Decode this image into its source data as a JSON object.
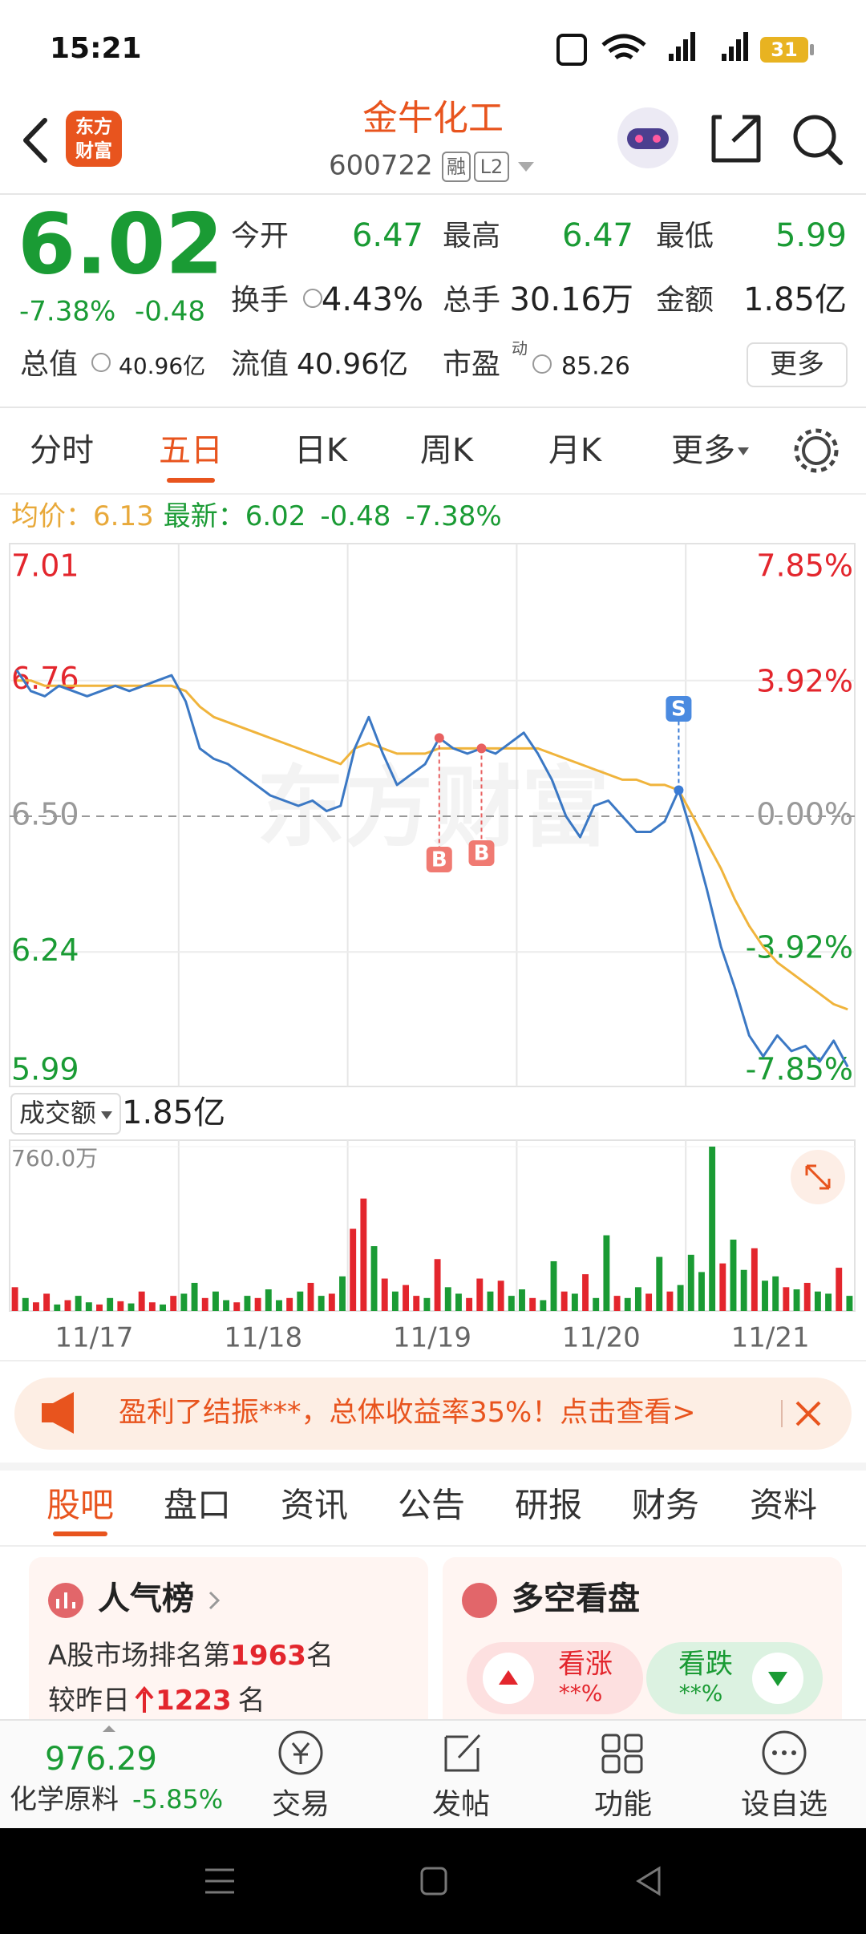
{
  "status_bar": {
    "time": "15:21",
    "battery": "31"
  },
  "header": {
    "logo": [
      "东方",
      "财富"
    ],
    "title": "金牛化工",
    "code": "600722",
    "badges": [
      "融",
      "L2"
    ]
  },
  "quote": {
    "price": "6.02",
    "change_pct": "-7.38%",
    "change": "-0.48",
    "price_color": "#1a9b34",
    "stats": [
      {
        "label": "今开",
        "value": "6.47",
        "color": "#1a9b34"
      },
      {
        "label": "最高",
        "value": "6.47",
        "color": "#1a9b34"
      },
      {
        "label": "最低",
        "value": "5.99",
        "color": "#1a9b34"
      },
      {
        "label": "换手",
        "value": "4.43%"
      },
      {
        "label": "总手",
        "value": "30.16万"
      },
      {
        "label": "金额",
        "value": "1.85亿"
      },
      {
        "label": "总值",
        "value": "40.96亿"
      },
      {
        "label": "流值",
        "value": "40.96亿"
      },
      {
        "label": "市盈",
        "sup": "动",
        "value": "85.26"
      }
    ],
    "more": "更多"
  },
  "chart_tabs": {
    "items": [
      "分时",
      "五日",
      "日K",
      "周K",
      "月K",
      "更多"
    ],
    "active": 1
  },
  "info_line": {
    "avg_label": "均价：",
    "avg": "6.13",
    "latest_label": "最新：",
    "latest": "6.02",
    "change": "-0.48",
    "change_pct": "-7.38%"
  },
  "chart": {
    "type": "line",
    "watermark": "东方财富",
    "ylim": [
      5.99,
      7.01
    ],
    "y2lim": [
      -7.85,
      7.85
    ],
    "yticks": [
      7.01,
      6.76,
      {
        "value": 6.5,
        "label": "6.50"
      },
      6.24,
      5.99
    ],
    "y2ticks": [
      {
        "value": 7.85,
        "label": "7.85%"
      },
      {
        "value": 3.92,
        "label": "3.92%"
      },
      {
        "value": 0,
        "label": "0.00%"
      },
      {
        "value": -3.92,
        "label": "-3.92%"
      },
      {
        "value": -7.85,
        "label": "-7.85%"
      }
    ],
    "price_color": "#3b78c4",
    "avg_color": "#f0b43c",
    "up_color": "#e3262d",
    "down_color": "#1a9b34",
    "price": [
      6.78,
      6.74,
      6.73,
      6.75,
      6.74,
      6.73,
      6.74,
      6.75,
      6.74,
      6.75,
      6.76,
      6.77,
      6.72,
      6.63,
      6.61,
      6.6,
      6.58,
      6.56,
      6.54,
      6.53,
      6.52,
      6.53,
      6.51,
      6.52,
      6.63,
      6.69,
      6.62,
      6.56,
      6.58,
      6.6,
      6.65,
      6.63,
      6.62,
      6.63,
      6.62,
      6.64,
      6.66,
      6.62,
      6.57,
      6.5,
      6.46,
      6.52,
      6.53,
      6.5,
      6.47,
      6.47,
      6.49,
      6.55,
      6.46,
      6.36,
      6.25,
      6.17,
      6.08,
      6.04,
      6.08,
      6.05,
      6.06,
      6.03,
      6.07,
      6.02
    ],
    "avg": [
      6.76,
      6.76,
      6.75,
      6.75,
      6.75,
      6.75,
      6.75,
      6.75,
      6.75,
      6.75,
      6.75,
      6.75,
      6.74,
      6.71,
      6.69,
      6.68,
      6.67,
      6.66,
      6.65,
      6.64,
      6.63,
      6.62,
      6.61,
      6.6,
      6.63,
      6.64,
      6.63,
      6.62,
      6.62,
      6.62,
      6.63,
      6.63,
      6.63,
      6.63,
      6.63,
      6.63,
      6.63,
      6.63,
      6.62,
      6.61,
      6.6,
      6.59,
      6.58,
      6.57,
      6.57,
      6.56,
      6.56,
      6.55,
      6.5,
      6.45,
      6.4,
      6.34,
      6.29,
      6.25,
      6.22,
      6.2,
      6.18,
      6.16,
      6.14,
      6.13
    ],
    "trade_marks": [
      "B",
      "B",
      "S"
    ],
    "dates": [
      "11/17",
      "11/18",
      "11/19",
      "11/20",
      "11/21"
    ]
  },
  "volume": {
    "selector": "成交额",
    "total": "1.85亿",
    "ylim": [
      0,
      760
    ],
    "yticks": [
      {
        "value": 760,
        "label": "760.0万"
      }
    ],
    "values": [
      110,
      60,
      40,
      80,
      30,
      50,
      70,
      40,
      30,
      60,
      45,
      35,
      90,
      40,
      30,
      70,
      80,
      130,
      60,
      90,
      50,
      40,
      70,
      60,
      100,
      50,
      60,
      90,
      130,
      70,
      80,
      160,
      380,
      520,
      300,
      150,
      90,
      120,
      70,
      60,
      240,
      110,
      80,
      60,
      150,
      90,
      140,
      70,
      100,
      60,
      50,
      230,
      90,
      80,
      170,
      60,
      350,
      70,
      60,
      110,
      80,
      250,
      90,
      120,
      260,
      180,
      760,
      220,
      330,
      190,
      290,
      140,
      160,
      110,
      100,
      130,
      90,
      80,
      200,
      70
    ],
    "direction": [
      "u",
      "d",
      "u",
      "u",
      "d",
      "u",
      "d",
      "d",
      "u",
      "d",
      "u",
      "d",
      "u",
      "u",
      "d",
      "u",
      "d",
      "d",
      "u",
      "d",
      "d",
      "u",
      "d",
      "u",
      "d",
      "d",
      "u",
      "d",
      "u",
      "d",
      "u",
      "d",
      "u",
      "u",
      "d",
      "u",
      "d",
      "u",
      "u",
      "d",
      "u",
      "d",
      "d",
      "u",
      "u",
      "d",
      "u",
      "d",
      "d",
      "u",
      "d",
      "d",
      "u",
      "d",
      "u",
      "d",
      "d",
      "u",
      "d",
      "d",
      "u",
      "d",
      "u",
      "d",
      "d",
      "d",
      "d",
      "u",
      "d",
      "d",
      "u",
      "d",
      "d",
      "u",
      "d",
      "u",
      "d",
      "d",
      "u",
      "d"
    ]
  },
  "banner": {
    "text": "盈利了结振***，总体收益率35%！点击查看>"
  },
  "section_tabs": {
    "items": [
      "股吧",
      "盘口",
      "资讯",
      "公告",
      "研报",
      "财务",
      "资料"
    ],
    "active": 0
  },
  "popularity_card": {
    "title": "人气榜",
    "rank_prefix": "A股市场排名第",
    "rank": "1963",
    "rank_suffix": "名",
    "change_prefix": "较昨日",
    "change": "1223",
    "change_suffix": "名"
  },
  "sentiment_card": {
    "title": "多空看盘",
    "bull_label": "看涨",
    "bull_value": "**%",
    "bear_label": "看跌",
    "bear_value": "**%"
  },
  "bottom_bar": {
    "index_value": "976.29",
    "sector": "化学原料",
    "sector_change": "-5.85%",
    "actions": [
      "交易",
      "发帖",
      "功能",
      "设自选"
    ]
  }
}
